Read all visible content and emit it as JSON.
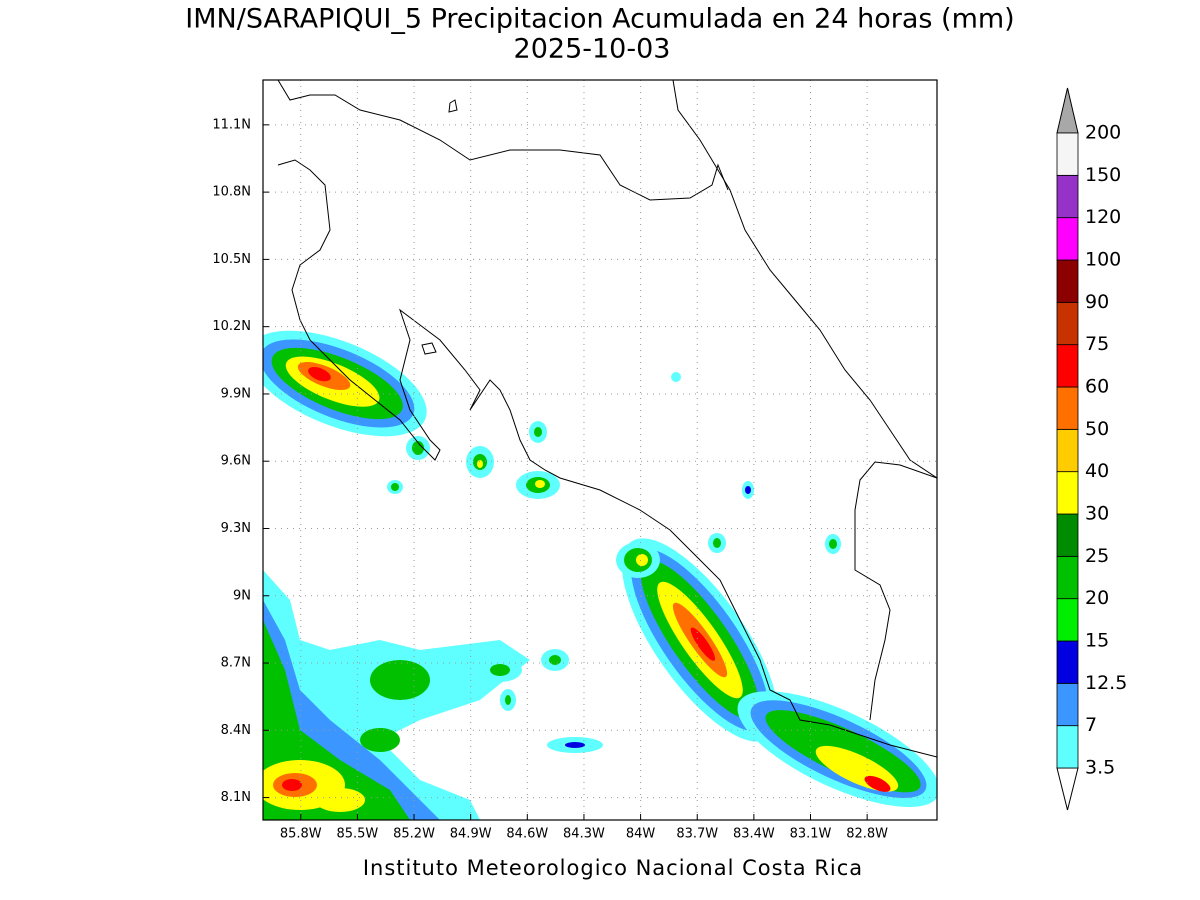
{
  "title": "IMN/SARAPIQUI_5 Precipitacion Acumulada en 24 horas (mm)",
  "subtitle": "2025-10-03",
  "footer": "Instituto Meteorologico Nacional Costa Rica",
  "map": {
    "xlim": [
      -86.0,
      -82.43
    ],
    "ylim": [
      8.0,
      11.3
    ],
    "xticks": [
      {
        "value": -85.8,
        "label": "85.8W"
      },
      {
        "value": -85.5,
        "label": "85.5W"
      },
      {
        "value": -85.2,
        "label": "85.2W"
      },
      {
        "value": -84.9,
        "label": "84.9W"
      },
      {
        "value": -84.6,
        "label": "84.6W"
      },
      {
        "value": -84.3,
        "label": "84.3W"
      },
      {
        "value": -84.0,
        "label": "84W"
      },
      {
        "value": -83.7,
        "label": "83.7W"
      },
      {
        "value": -83.4,
        "label": "83.4W"
      },
      {
        "value": -83.1,
        "label": "83.1W"
      },
      {
        "value": -82.8,
        "label": "82.8W"
      }
    ],
    "yticks": [
      {
        "value": 8.1,
        "label": "8.1N"
      },
      {
        "value": 8.4,
        "label": "8.4N"
      },
      {
        "value": 8.7,
        "label": "8.7N"
      },
      {
        "value": 9.0,
        "label": "9N"
      },
      {
        "value": 9.3,
        "label": "9.3N"
      },
      {
        "value": 9.6,
        "label": "9.6N"
      },
      {
        "value": 9.9,
        "label": "9.9N"
      },
      {
        "value": 10.2,
        "label": "10.2N"
      },
      {
        "value": 10.5,
        "label": "10.5N"
      },
      {
        "value": 10.8,
        "label": "10.8N"
      },
      {
        "value": 11.1,
        "label": "11.1N"
      }
    ],
    "grid": true
  },
  "colorbar": {
    "levels": [
      3.5,
      7,
      12.5,
      15,
      20,
      25,
      30,
      40,
      50,
      60,
      75,
      90,
      100,
      120,
      150,
      200
    ],
    "colors": [
      "#60ffff",
      "#3c96ff",
      "#0000e0",
      "#00ee00",
      "#00c000",
      "#008c00",
      "#ffff00",
      "#ffcc00",
      "#ff7000",
      "#ff0000",
      "#c83200",
      "#8c0000",
      "#ff00ff",
      "#9632c8",
      "#f5f5f5"
    ],
    "under_color": "#ffffff",
    "over_color": "#a8a8a8"
  }
}
